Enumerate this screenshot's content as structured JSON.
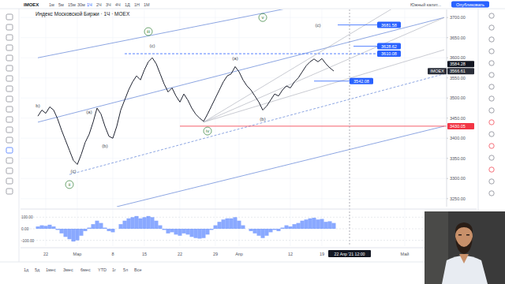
{
  "toolbar": {
    "symbol": "IMOEX",
    "intervals": [
      "1м",
      "5м",
      "15м",
      "30м",
      "1Ч",
      "2Ч",
      "3Ч",
      "4Ч",
      "1Д",
      "1Н",
      "1М"
    ],
    "active": "1Ч",
    "account": "Южный капит...",
    "publish": "Опубликовать"
  },
  "title": "Индекс Московской Биржи · 1Ч · MOEX",
  "bottom_bar": [
    "1д",
    "5д",
    "1мес",
    "3мес",
    "6мес",
    "YTD",
    "1г",
    "5л",
    "Все"
  ],
  "chart_data": [
    {
      "type": "line",
      "color": "#1e2230",
      "grid": true,
      "categories": [
        null,
        null,
        "22",
        null,
        null,
        null,
        null,
        null,
        null,
        null,
        "Мар",
        null,
        null,
        null,
        null,
        null,
        null,
        null,
        null,
        "8",
        null,
        null,
        null,
        null,
        null,
        null,
        null,
        "15",
        null,
        null,
        null,
        null,
        null,
        null,
        null,
        null,
        "22",
        null,
        null,
        null,
        null,
        null,
        null,
        null,
        null,
        "29",
        null,
        null,
        null,
        null,
        null,
        "Апр",
        null,
        null,
        null,
        null,
        null,
        null,
        null,
        null,
        null,
        null,
        null,
        null,
        "12",
        null,
        null,
        null,
        null,
        null,
        null,
        null,
        "19",
        null,
        null,
        null,
        null,
        null,
        null,
        null,
        null,
        null,
        null,
        null,
        null,
        null,
        null,
        null,
        null,
        null,
        null,
        null,
        null,
        "Май",
        null,
        null,
        null,
        null,
        null,
        null,
        null,
        null,
        null,
        null
      ],
      "values": [
        3455,
        3470,
        3462,
        3478,
        3470,
        3448,
        3420,
        3395,
        3370,
        3345,
        3335,
        3360,
        3390,
        3410,
        3440,
        3475,
        3460,
        3430,
        3405,
        3400,
        3430,
        3470,
        3495,
        3520,
        3540,
        3555,
        3545,
        3570,
        3590,
        3600,
        3585,
        3560,
        3535,
        3515,
        3525,
        3505,
        3490,
        3510,
        3495,
        3475,
        3460,
        3450,
        3442,
        3460,
        3480,
        3500,
        3520,
        3540,
        3555,
        3560,
        3578,
        3565,
        3545,
        3530,
        3520,
        3505,
        3490,
        3470,
        3480,
        3495,
        3510,
        3505,
        3520,
        3530,
        3525,
        3540,
        3550,
        3565,
        3580,
        3590,
        3597,
        3590,
        3598,
        3585,
        3575,
        3567,
        null,
        null,
        null,
        null,
        null,
        null,
        null,
        null,
        null,
        null,
        null,
        null,
        null,
        null,
        null,
        null,
        null,
        null,
        null,
        null,
        null,
        null,
        null,
        null,
        null,
        null,
        null,
        null
      ],
      "ylim": [
        3230,
        3720
      ],
      "yticks": [
        {
          "value": 3250,
          "label": "3250.00"
        },
        {
          "value": 3300,
          "label": "3300.00"
        },
        {
          "value": 3350,
          "label": "3350.00"
        },
        {
          "value": 3400,
          "label": "3400.00"
        },
        {
          "value": 3450,
          "label": "3450.00"
        },
        {
          "value": 3500,
          "label": "3500.00"
        },
        {
          "value": 3550,
          "label": "3550.00"
        },
        {
          "value": 3600,
          "label": "3600.00"
        },
        {
          "value": 3650,
          "label": "3650.00"
        },
        {
          "value": 3700,
          "label": "3700.00"
        }
      ],
      "annotations": [
        {
          "text": "b)",
          "x": 0,
          "y": 3480,
          "color": "#434651"
        },
        {
          "text": "(c)",
          "x": 9,
          "y": 3318,
          "color": "#434651"
        },
        {
          "text": "ii",
          "x": 8,
          "y": 3285,
          "color": "#2e7d32",
          "marker": "circle"
        },
        {
          "text": "(a)",
          "x": 13,
          "y": 3465,
          "color": "#434651"
        },
        {
          "text": "(b)",
          "x": 17,
          "y": 3380,
          "color": "#434651"
        },
        {
          "text": "iii",
          "x": 28,
          "y": 3665,
          "color": "#2e7d32",
          "marker": "circle"
        },
        {
          "text": "(c)",
          "x": 29,
          "y": 3630,
          "color": "#434651"
        },
        {
          "text": "iv",
          "x": 43,
          "y": 3418,
          "color": "#2e7d32",
          "marker": "circle"
        },
        {
          "text": "(a)",
          "x": 50,
          "y": 3598,
          "color": "#434651"
        },
        {
          "text": "(b)",
          "x": 57,
          "y": 3448,
          "color": "#434651"
        },
        {
          "text": "v",
          "x": 57,
          "y": 3700,
          "color": "#2e7d32",
          "marker": "circle"
        },
        {
          "text": "(c)",
          "x": 71,
          "y": 3680,
          "color": "#434651"
        }
      ],
      "levels": [
        {
          "value": 3681.58,
          "label": "3681.58",
          "color": "#2962ff",
          "from": 76,
          "to": 92
        },
        {
          "value": 3628.62,
          "label": "3628.62",
          "color": "#2962ff",
          "from": 80,
          "to": 92
        },
        {
          "value": 3610.08,
          "label": "3610.08",
          "color": "#2962ff",
          "from": 22,
          "to": 92,
          "line_style": "dashed"
        },
        {
          "value": 3542.08,
          "label": "3542.08",
          "color": "#2962ff",
          "from": 70,
          "to": 85
        },
        {
          "value": 3430.05,
          "label": "3430.05",
          "color": "#f23645",
          "from": 36
        },
        {
          "value": 3584.28,
          "label": "3584.28",
          "color": "#131722"
        },
        {
          "value": 3566.61,
          "label": "3566.61",
          "color": "#2a2e39",
          "name": "IMOEX"
        }
      ],
      "trendlines": [
        {
          "x": [
            0,
            103
          ],
          "y": [
            3600,
            3800
          ],
          "color": "#5b7fd6",
          "line_style": "solid"
        },
        {
          "x": [
            0,
            103
          ],
          "y": [
            3440,
            3700
          ],
          "color": "#5b7fd6",
          "line_style": "solid"
        },
        {
          "x": [
            8,
            103
          ],
          "y": [
            3310,
            3560
          ],
          "color": "#5b7fd6",
          "line_style": "dashed"
        },
        {
          "x": [
            20,
            103
          ],
          "y": [
            3230,
            3430
          ],
          "color": "#5b7fd6",
          "line_style": "solid"
        },
        {
          "x": [
            42,
            103
          ],
          "y": [
            3440,
            3620
          ],
          "color": "#b2b5be",
          "line_style": "solid"
        },
        {
          "x": [
            42,
            103
          ],
          "y": [
            3440,
            3700
          ],
          "color": "#b2b5be",
          "line_style": "solid"
        },
        {
          "x": [
            42,
            103
          ],
          "y": [
            3440,
            3800
          ],
          "color": "#b2b5be",
          "line_style": "solid"
        }
      ],
      "crosshair": {
        "x": 79,
        "label": "22 Апр '21 12:00"
      }
    },
    {
      "type": "bar",
      "color": "#2962ff",
      "values": [
        20,
        30,
        25,
        35,
        20,
        -10,
        -40,
        -70,
        -90,
        -110,
        -100,
        -60,
        -20,
        10,
        40,
        70,
        50,
        10,
        -20,
        -30,
        0,
        40,
        70,
        90,
        100,
        110,
        90,
        100,
        110,
        100,
        70,
        30,
        -10,
        -40,
        -30,
        -50,
        -60,
        -40,
        -50,
        -70,
        -80,
        -85,
        -80,
        -50,
        -10,
        30,
        60,
        80,
        90,
        90,
        100,
        70,
        30,
        0,
        -20,
        -40,
        -60,
        -80,
        -60,
        -30,
        -10,
        -20,
        10,
        30,
        20,
        40,
        50,
        70,
        80,
        90,
        95,
        80,
        85,
        60,
        65,
        50,
        null,
        null,
        null,
        null,
        null,
        null,
        null,
        null,
        null,
        null,
        null,
        null,
        null,
        null,
        null,
        null,
        null,
        null,
        null,
        null,
        null,
        null,
        null,
        null,
        null,
        null,
        null,
        null
      ],
      "ylim": [
        -150,
        150
      ],
      "yticks": [
        {
          "value": 100,
          "label": "100.00"
        },
        {
          "value": 0,
          "label": "0.00"
        },
        {
          "value": -100,
          "label": "-100.00"
        }
      ]
    }
  ]
}
